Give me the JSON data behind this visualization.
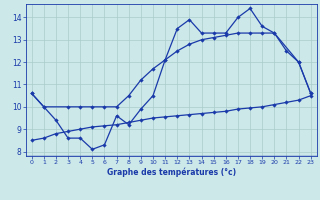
{
  "title": "Graphe des températures (°c)",
  "background_color": "#cce8e8",
  "line_color": "#1a3aaa",
  "grid_color": "#aacccc",
  "xlim": [
    -0.5,
    23.5
  ],
  "ylim": [
    7.8,
    14.6
  ],
  "yticks": [
    8,
    9,
    10,
    11,
    12,
    13,
    14
  ],
  "xticks": [
    0,
    1,
    2,
    3,
    4,
    5,
    6,
    7,
    8,
    9,
    10,
    11,
    12,
    13,
    14,
    15,
    16,
    17,
    18,
    19,
    20,
    21,
    22,
    23
  ],
  "line1_x": [
    0,
    1,
    2,
    3,
    4,
    5,
    6,
    7,
    8,
    9,
    10,
    11,
    12,
    13,
    14,
    15,
    16,
    17,
    18,
    19,
    20,
    21,
    22,
    23
  ],
  "line1_y": [
    10.6,
    10.0,
    9.4,
    8.6,
    8.6,
    8.1,
    8.3,
    9.6,
    9.2,
    9.9,
    10.5,
    12.1,
    13.5,
    13.9,
    13.3,
    13.3,
    13.3,
    14.0,
    14.4,
    13.6,
    13.3,
    12.5,
    12.0,
    10.6
  ],
  "line2_x": [
    0,
    1,
    3,
    4,
    5,
    6,
    7,
    8,
    9,
    10,
    11,
    12,
    13,
    14,
    15,
    16,
    17,
    18,
    19,
    20,
    22,
    23
  ],
  "line2_y": [
    10.6,
    10.0,
    10.0,
    10.0,
    10.0,
    10.0,
    10.0,
    10.5,
    11.2,
    11.7,
    12.1,
    12.5,
    12.8,
    13.0,
    13.1,
    13.2,
    13.3,
    13.3,
    13.3,
    13.3,
    12.0,
    10.6
  ],
  "line3_x": [
    0,
    1,
    2,
    3,
    4,
    5,
    6,
    7,
    8,
    9,
    10,
    11,
    12,
    13,
    14,
    15,
    16,
    17,
    18,
    19,
    20,
    21,
    22,
    23
  ],
  "line3_y": [
    8.5,
    8.6,
    8.8,
    8.9,
    9.0,
    9.1,
    9.15,
    9.2,
    9.3,
    9.4,
    9.5,
    9.55,
    9.6,
    9.65,
    9.7,
    9.75,
    9.8,
    9.9,
    9.95,
    10.0,
    10.1,
    10.2,
    10.3,
    10.5
  ]
}
